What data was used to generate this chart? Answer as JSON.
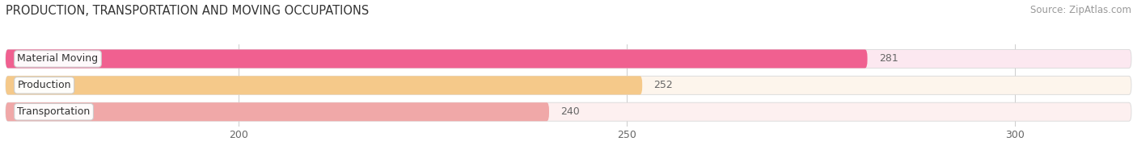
{
  "title": "PRODUCTION, TRANSPORTATION AND MOVING OCCUPATIONS",
  "source": "Source: ZipAtlas.com",
  "categories": [
    "Material Moving",
    "Production",
    "Transportation"
  ],
  "values": [
    281,
    252,
    240
  ],
  "bar_colors": [
    "#f06090",
    "#f5c98a",
    "#f0a8a8"
  ],
  "bar_bg_colors": [
    "#fce8f0",
    "#fdf5ec",
    "#fdf0f0"
  ],
  "label_dot_colors": [
    "#f06090",
    "#f5c98a",
    "#f0a8a8"
  ],
  "xlim_min": 170,
  "xlim_max": 315,
  "xticks": [
    200,
    250,
    300
  ],
  "value_label_color": "#666666",
  "title_fontsize": 10.5,
  "source_fontsize": 8.5,
  "tick_fontsize": 9,
  "label_fontsize": 9,
  "background_color": "#ffffff"
}
